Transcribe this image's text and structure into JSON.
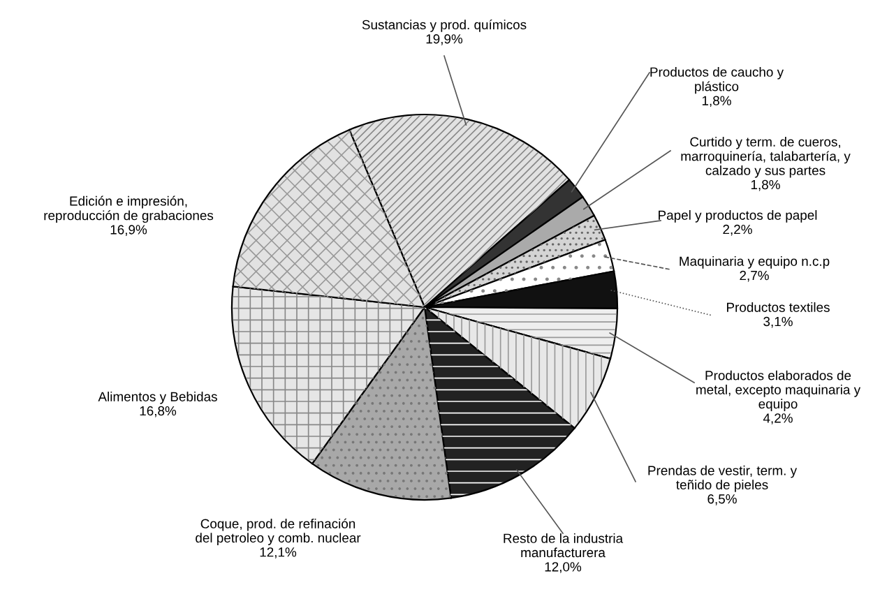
{
  "chart_data": {
    "type": "pie",
    "categories": [
      "Sustancias y prod. químicos",
      "Productos de caucho y\nplástico",
      "Curtido y term. de cueros,\nmarroquinería, talabartería, y\ncalzado y sus partes",
      "Papel y productos de papel",
      "Maquinaria y equipo n.c.p",
      "Productos textiles",
      "Productos elaborados de\nmetal, excepto maquinaria y\nequipo",
      "Prendas de vestir, term. y\nteñido de pieles",
      "Resto de la industria\nmanufacturera",
      "Coque, prod. de refinación\ndel petroleo y comb. nuclear",
      "Alimentos y Bebidas",
      "Edición e impresión,\nreproducción de grabaciones"
    ],
    "values": [
      19.9,
      1.8,
      1.8,
      2.2,
      2.7,
      3.1,
      4.2,
      6.5,
      12.0,
      12.1,
      16.8,
      16.9
    ],
    "value_labels": [
      "19,9%",
      "1,8%",
      "1,8%",
      "2,2%",
      "2,7%",
      "3,1%",
      "4,2%",
      "6,5%",
      "12,0%",
      "12,1%",
      "16,8%",
      "16,9%"
    ],
    "colors": [
      "#e2e2e2",
      "#333333",
      "#aaaaaa",
      "#d4d4d4",
      "#ffffff",
      "#111111",
      "#eeeeee",
      "#e8e8e8",
      "#222222",
      "#a8a8a8",
      "#e6e6e6",
      "#e2e2e2"
    ]
  }
}
